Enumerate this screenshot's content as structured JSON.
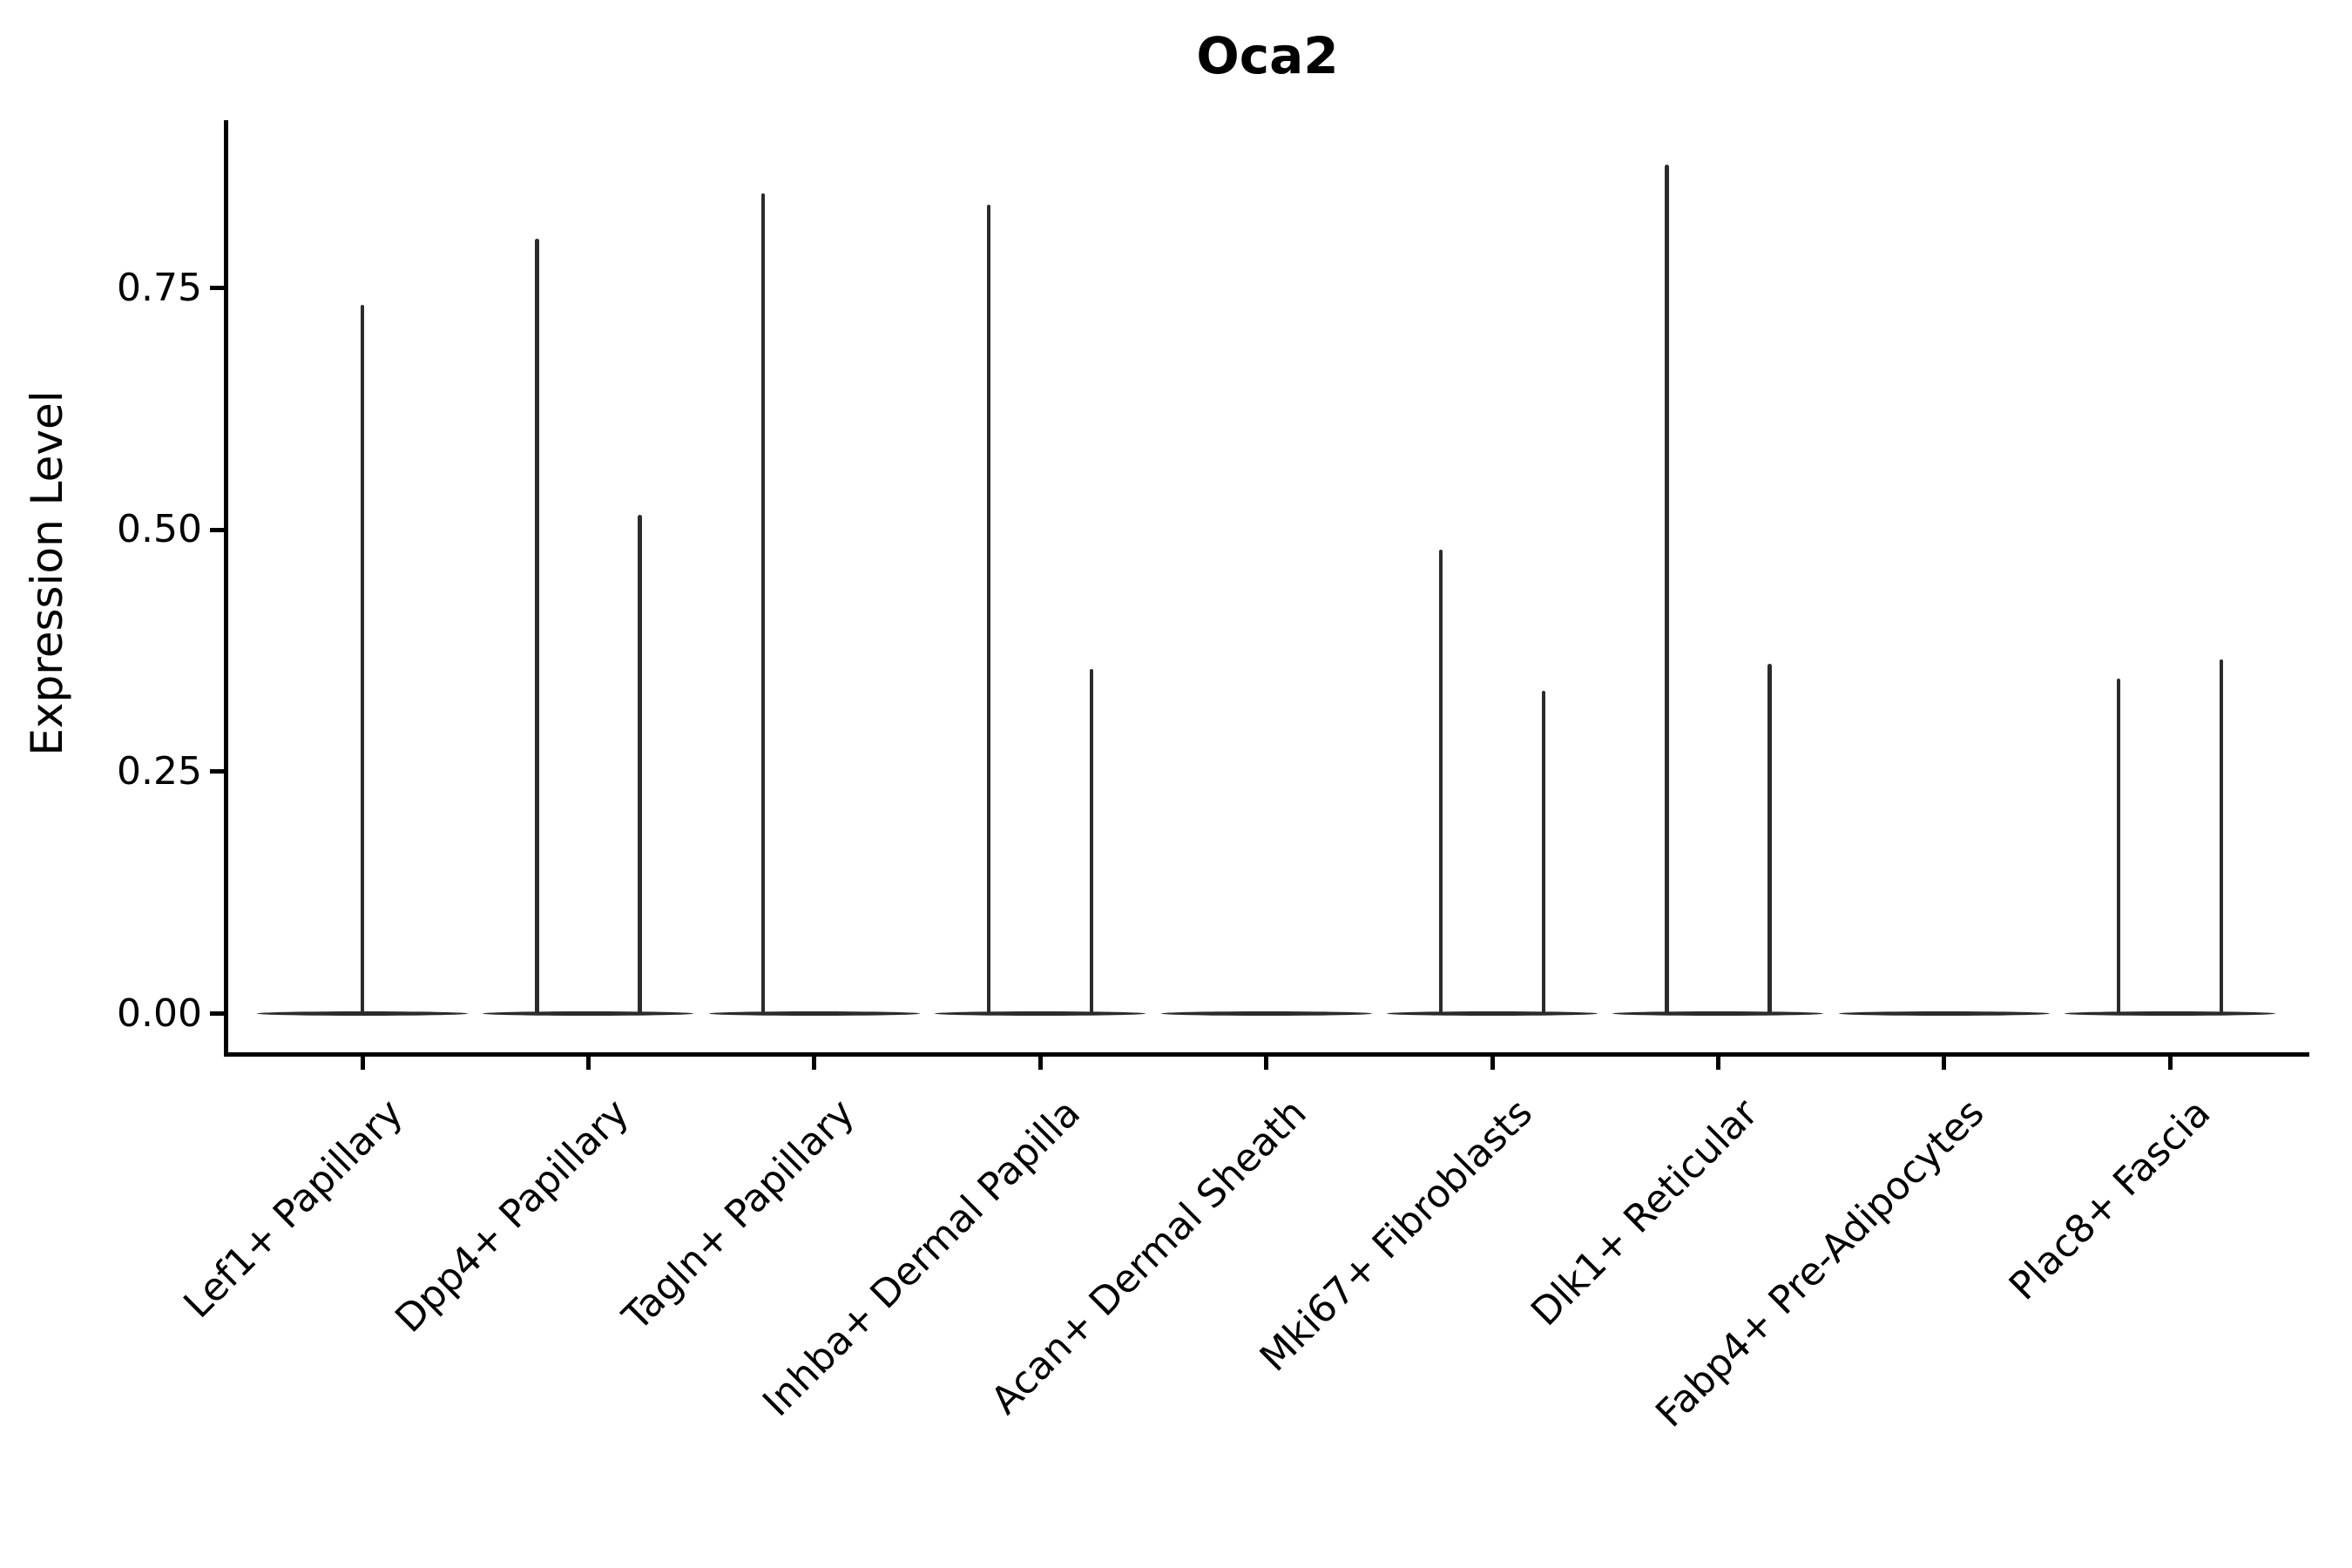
{
  "figure": {
    "title": "Oca2",
    "ylabel": "Expression Level"
  },
  "colors": {
    "violin": "#2b2b2b",
    "axis": "#000000",
    "text": "#000000",
    "background": "#ffffff"
  },
  "chart_data": {
    "type": "violin",
    "title": "Oca2",
    "xlabel": "",
    "ylabel": "Expression Level",
    "ytick_labels": [
      "0.00",
      "0.25",
      "0.50",
      "0.75"
    ],
    "ytick_values": [
      0.0,
      0.25,
      0.5,
      0.75
    ],
    "ylim": [
      -0.042,
      0.923
    ],
    "grid": false,
    "legend": "none",
    "categories": [
      "Lef1+ Papillary",
      "Dpp4+ Papillary",
      "Tagln+ Papillary",
      "Inhba+ Dermal Papilla",
      "Acan+ Dermal Sheath",
      "Mki67+ Fibroblasts",
      "Dlk1+ Reticular",
      "Fabp4+ Pre-Adipocytes",
      "Plac8+ Fascia"
    ],
    "violins": [
      {
        "category": "Lef1+ Papillary",
        "baseline_at_zero": true,
        "spikes": [
          {
            "pos": "center",
            "value": 0.733
          }
        ]
      },
      {
        "category": "Dpp4+ Papillary",
        "baseline_at_zero": true,
        "spikes": [
          {
            "pos": "left",
            "value": 0.801
          },
          {
            "pos": "right",
            "value": 0.516
          }
        ]
      },
      {
        "category": "Tagln+ Papillary",
        "baseline_at_zero": true,
        "spikes": [
          {
            "pos": "left",
            "value": 0.848
          }
        ]
      },
      {
        "category": "Inhba+ Dermal Papilla",
        "baseline_at_zero": true,
        "spikes": [
          {
            "pos": "left",
            "value": 0.836
          },
          {
            "pos": "right",
            "value": 0.356
          }
        ]
      },
      {
        "category": "Acan+ Dermal Sheath",
        "baseline_at_zero": true,
        "spikes": []
      },
      {
        "category": "Mki67+ Fibroblasts",
        "baseline_at_zero": true,
        "spikes": [
          {
            "pos": "left",
            "value": 0.48
          },
          {
            "pos": "right",
            "value": 0.334
          }
        ]
      },
      {
        "category": "Dlk1+ Reticular",
        "baseline_at_zero": true,
        "spikes": [
          {
            "pos": "left",
            "value": 0.878
          },
          {
            "pos": "right",
            "value": 0.362
          }
        ]
      },
      {
        "category": "Fabp4+ Pre-Adipocytes",
        "baseline_at_zero": true,
        "spikes": []
      },
      {
        "category": "Plac8+ Fascia",
        "baseline_at_zero": true,
        "spikes": [
          {
            "pos": "left",
            "value": 0.346
          },
          {
            "pos": "right",
            "value": 0.366
          }
        ]
      }
    ]
  }
}
